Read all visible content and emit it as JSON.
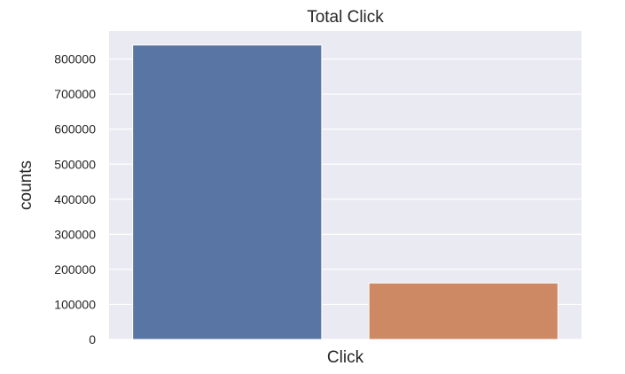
{
  "chart_data": {
    "type": "bar",
    "title": "Total Click",
    "xlabel": "Click",
    "ylabel": "counts",
    "categories": [
      "",
      ""
    ],
    "values": [
      840000,
      161000
    ],
    "ylim": [
      0,
      880000
    ],
    "yticks": [
      0,
      100000,
      200000,
      300000,
      400000,
      500000,
      600000,
      700000,
      800000
    ],
    "ytick_labels": [
      "0",
      "100000",
      "200000",
      "300000",
      "400000",
      "500000",
      "600000",
      "700000",
      "800000"
    ],
    "grid": true,
    "legend": "none",
    "colors": [
      "#5875a4",
      "#cc8963"
    ],
    "background": "#eaeaf2",
    "grid_color": "#ffffff"
  }
}
